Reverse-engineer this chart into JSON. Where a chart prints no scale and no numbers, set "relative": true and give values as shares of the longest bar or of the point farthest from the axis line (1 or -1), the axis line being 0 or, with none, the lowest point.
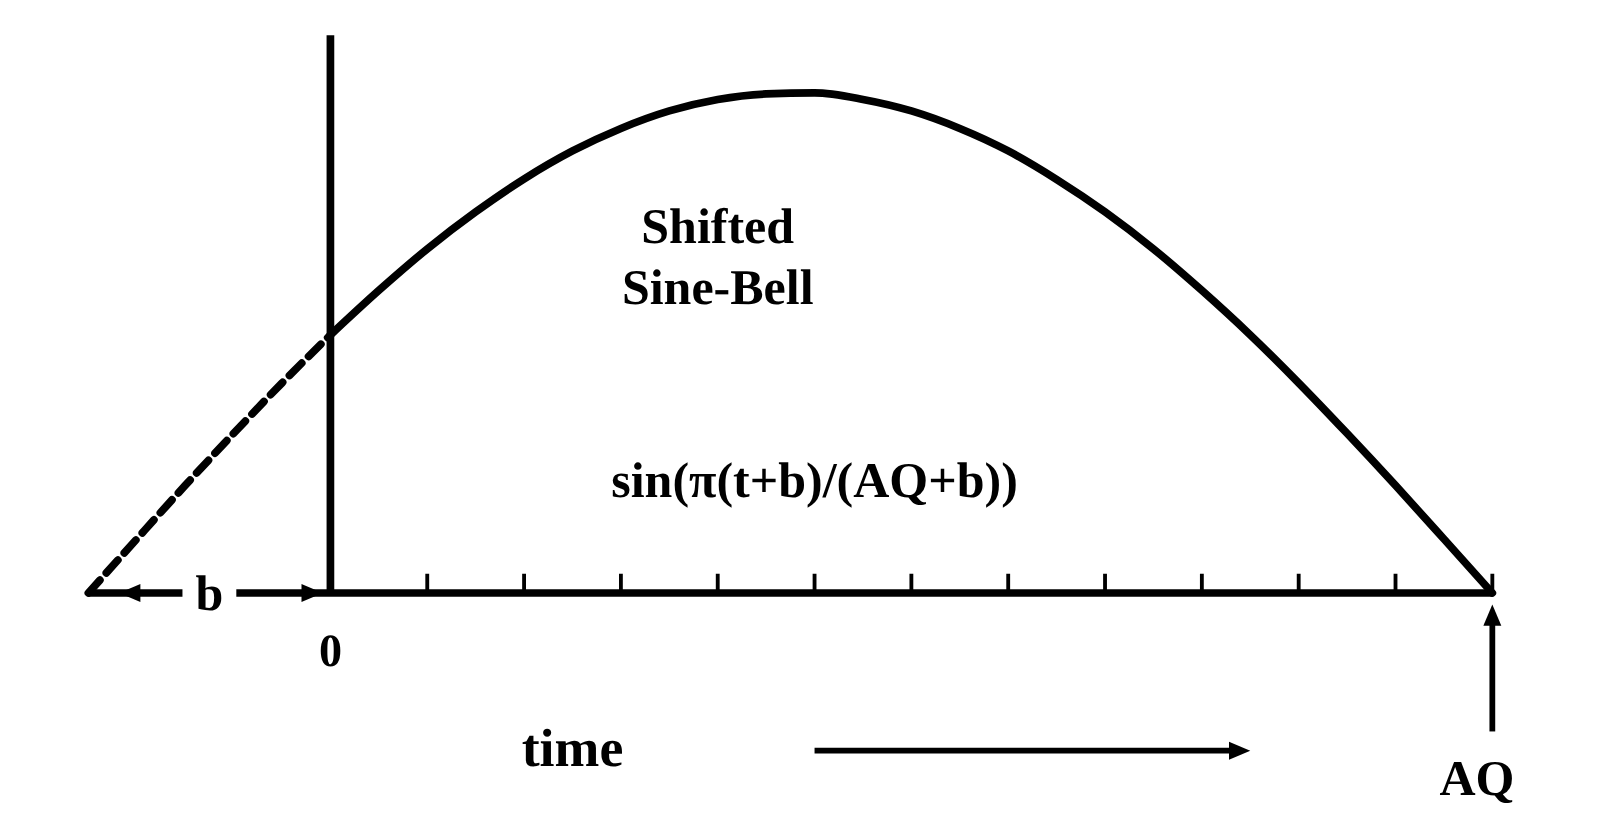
{
  "chart_data": {
    "type": "line",
    "relative": true,
    "xlabel": "time",
    "categories": [
      null,
      null,
      null,
      null,
      null,
      null,
      null,
      null,
      null,
      null,
      null,
      null,
      null,
      null,
      null,
      null,
      null,
      null,
      null,
      null,
      null,
      null,
      null,
      null,
      null,
      null,
      null,
      null,
      null,
      null
    ],
    "series": [
      {
        "color": "#000000",
        "line_style": "dashed",
        "values": [
          0,
          0.108,
          0.215,
          0.319,
          0.42,
          0.516,
          null,
          null,
          null,
          null,
          null,
          null,
          null,
          null,
          null,
          null,
          null,
          null,
          null,
          null,
          null,
          null,
          null,
          null,
          null,
          null,
          null,
          null,
          null,
          null
        ]
      },
      {
        "color": "#000000",
        "line_style": "solid",
        "values": [
          null,
          null,
          null,
          null,
          null,
          0.516,
          0.605,
          0.688,
          0.762,
          0.828,
          0.884,
          0.929,
          0.964,
          0.987,
          0.998,
          1,
          0.987,
          0.964,
          0.929,
          0.884,
          0.827,
          0.762,
          0.688,
          0.605,
          0.516,
          0.42,
          0.319,
          0.215,
          0.108,
          0
        ]
      }
    ],
    "annotations": [
      "Shifted Sine-Bell",
      "sin(π(t+b)/(AQ+b))",
      "b",
      "0",
      "AQ"
    ],
    "marker": "none"
  }
}
